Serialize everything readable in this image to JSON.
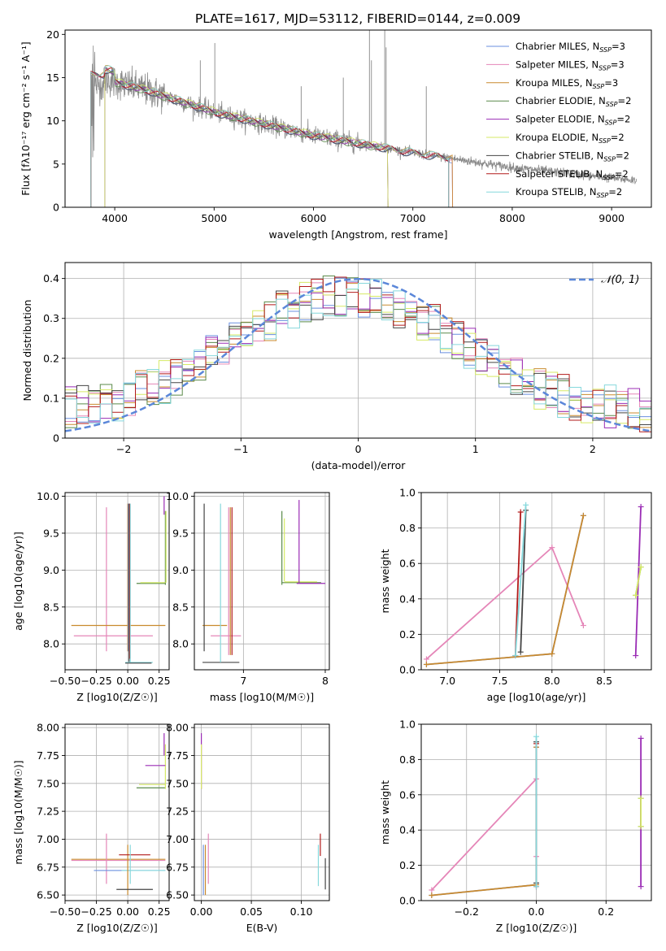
{
  "title": "PLATE=1617, MJD=53112, FIBERID=0144, z=0.009",
  "model_colors": [
    "#6a8fdf",
    "#e586b8",
    "#c98a2e",
    "#5a8a4a",
    "#9a2cb5",
    "#d6ea66",
    "#444444",
    "#b21a1a",
    "#86d8dc"
  ],
  "panel_spectrum": {
    "xlabel": "wavelength [Angstrom, rest frame]",
    "ylabel": "Flux [fλ10⁻¹⁷ erg cm⁻² s⁻¹ A⁻¹]",
    "xlim": [
      3500,
      9400
    ],
    "ylim": [
      0,
      20.5
    ],
    "xticks": [
      4000,
      5000,
      6000,
      7000,
      8000,
      9000
    ],
    "yticks": [
      0,
      5,
      10,
      15,
      20
    ],
    "legend": [
      "Chabrier MILES, N_SSP=3",
      "Salpeter MILES, N_SSP=3",
      "Kroupa MILES, N_SSP=3",
      "Chabrier ELODIE, N_SSP=2",
      "Salpeter ELODIE, N_SSP=2",
      "Kroupa ELODIE, N_SSP=2",
      "Chabrier STELIB, N_SSP=2",
      "Salpeter STELIB, N_SSP=2",
      "Kroupa STELIB, N_SSP=2"
    ],
    "legend_placement": "top-right",
    "data_color": "#888888"
  },
  "panel_hist": {
    "xlabel": "(data-model)/error",
    "ylabel": "Normed distribution",
    "xlim": [
      -2.5,
      2.5
    ],
    "ylim": [
      0,
      0.44
    ],
    "xticks": [
      -2,
      -1,
      0,
      1,
      2
    ],
    "yticks": [
      0.0,
      0.1,
      0.2,
      0.3,
      0.4
    ],
    "gauss_label": "𝒩(0, 1)",
    "gauss_color": "#5b87d9",
    "grid": true
  },
  "panel_Z_age": {
    "xlabel": "Z [log10(Z/Z☉)]",
    "ylabel": "age  [log10(age/yr)]",
    "xlim": [
      -0.5,
      0.33
    ],
    "ylim": [
      7.65,
      10.05
    ],
    "xticks": [
      -0.5,
      -0.25,
      0.0,
      0.25
    ],
    "xticklabels": [
      "−0.50",
      "−0.25",
      "0.00",
      "0.25"
    ],
    "yticks": [
      8.0,
      8.5,
      9.0,
      9.5,
      10.0
    ],
    "yticklabels": [
      "8.0",
      "8.5",
      "9.0",
      "9.5",
      "10.0"
    ]
  },
  "panel_mass_age": {
    "xlabel": "mass [log10(M/M☉)]",
    "xlim": [
      6.4,
      8.05
    ],
    "ylim": [
      7.65,
      10.05
    ],
    "xticks": [
      7,
      8
    ],
    "yticks": [
      8.0,
      8.5,
      9.0,
      9.5,
      10.0
    ],
    "yticklabels": [
      "8.0",
      "8.5",
      "9.0",
      "9.5",
      "10.0"
    ]
  },
  "panel_Z_mass": {
    "xlabel": "Z [log10(Z/Z☉)]",
    "ylabel": "mass [log10(M/M☉)]",
    "xlim": [
      -0.5,
      0.33
    ],
    "ylim": [
      6.45,
      8.03
    ],
    "xticks": [
      -0.5,
      -0.25,
      0.0,
      0.25
    ],
    "xticklabels": [
      "−0.50",
      "−0.25",
      "0.00",
      "0.25"
    ],
    "yticks": [
      6.5,
      6.75,
      7.0,
      7.25,
      7.5,
      7.75,
      8.0
    ],
    "yticklabels": [
      "6.50",
      "6.75",
      "7.00",
      "7.25",
      "7.50",
      "7.75",
      "8.00"
    ]
  },
  "panel_ebv_mass": {
    "xlabel": "E(B-V)",
    "xlim": [
      -0.007,
      0.128
    ],
    "ylim": [
      6.45,
      8.03
    ],
    "xticks": [
      0.0,
      0.05,
      0.1
    ],
    "xticklabels": [
      "0.00",
      "0.05",
      "0.10"
    ],
    "yticks": [
      6.5,
      6.75,
      7.0,
      7.25,
      7.5,
      7.75,
      8.0
    ],
    "yticklabels": [
      "6.50",
      "6.75",
      "7.00",
      "7.25",
      "7.50",
      "7.75",
      "8.00"
    ]
  },
  "panel_age_weight": {
    "xlabel": "age  [log10(age/yr)]",
    "ylabel": "mass weight",
    "xlim": [
      6.75,
      8.95
    ],
    "ylim": [
      0,
      1
    ],
    "xticks": [
      7.0,
      7.5,
      8.0,
      8.5
    ],
    "xticklabels": [
      "7.0",
      "7.5",
      "8.0",
      "8.5"
    ],
    "yticks": [
      0,
      0.2,
      0.4,
      0.6,
      0.8,
      1.0
    ],
    "yticklabels": [
      "0.0",
      "0.2",
      "0.4",
      "0.6",
      "0.8",
      "1.0"
    ]
  },
  "panel_Z_weight": {
    "xlabel": "Z [log10(Z/Z☉)]",
    "ylabel": "mass weight",
    "xlim": [
      -0.33,
      0.33
    ],
    "ylim": [
      0,
      1
    ],
    "xticks": [
      -0.2,
      0.0,
      0.2
    ],
    "xticklabels": [
      "−0.2",
      "0.0",
      "0.2"
    ],
    "yticks": [
      0,
      0.2,
      0.4,
      0.6,
      0.8,
      1.0
    ],
    "yticklabels": [
      "0.0",
      "0.2",
      "0.4",
      "0.6",
      "0.8",
      "1.0"
    ]
  },
  "chart_data": {
    "type": "line",
    "ssp_models": [
      {
        "name": "Chabrier MILES",
        "ages": [
          6.8,
          8.0,
          8.3
        ],
        "Z": [
          -0.3,
          0.0,
          0.0
        ],
        "weights": [
          0.03,
          0.09,
          0.87
        ],
        "mass": [
          6.72,
          6.72,
          6.72
        ],
        "ebv": [
          0.003,
          0.003,
          0.003
        ]
      },
      {
        "name": "Salpeter MILES",
        "ages": [
          6.8,
          8.0,
          8.3
        ],
        "Z": [
          -0.3,
          0.0,
          0.0
        ],
        "weights": [
          0.06,
          0.69,
          0.25
        ],
        "mass": [
          6.82,
          6.82,
          6.82
        ],
        "ebv": [
          0.007,
          0.007,
          0.007
        ]
      },
      {
        "name": "Kroupa MILES",
        "ages": [
          6.8,
          8.0,
          8.3
        ],
        "Z": [
          -0.3,
          0.0,
          0.0
        ],
        "weights": [
          0.03,
          0.09,
          0.87
        ],
        "mass": [
          6.81,
          6.81,
          6.81
        ],
        "ebv": [
          0.004,
          0.004,
          0.004
        ]
      },
      {
        "name": "Chabrier ELODIE",
        "ages": [
          8.8,
          8.85
        ],
        "Z": [
          0.3,
          0.3
        ],
        "weights": [
          0.42,
          0.58
        ],
        "mass": [
          7.48,
          7.48
        ],
        "ebv": [
          0.0,
          0.0
        ]
      },
      {
        "name": "Salpeter ELODIE",
        "ages": [
          8.8,
          8.85
        ],
        "Z": [
          0.3,
          0.3
        ],
        "weights": [
          0.08,
          0.92
        ],
        "mass": [
          7.66,
          7.66
        ],
        "ebv": [
          0.0,
          0.0
        ]
      },
      {
        "name": "Kroupa ELODIE",
        "ages": [
          8.8,
          8.85
        ],
        "Z": [
          0.3,
          0.3
        ],
        "weights": [
          0.42,
          0.58
        ],
        "mass": [
          7.49,
          7.49
        ],
        "ebv": [
          0.0,
          0.0
        ]
      },
      {
        "name": "Chabrier STELIB",
        "ages": [
          7.7,
          7.75
        ],
        "Z": [
          0.0,
          0.0
        ],
        "weights": [
          0.1,
          0.9
        ],
        "mass": [
          6.55,
          6.55
        ],
        "ebv": [
          0.122,
          0.122
        ]
      },
      {
        "name": "Salpeter STELIB",
        "ages": [
          7.65,
          7.7
        ],
        "Z": [
          0.0,
          0.0
        ],
        "weights": [
          0.08,
          0.89
        ],
        "mass": [
          6.86,
          6.86
        ],
        "ebv": [
          0.118,
          0.118
        ]
      },
      {
        "name": "Kroupa STELIB",
        "ages": [
          7.65,
          7.75
        ],
        "Z": [
          0.0,
          0.0
        ],
        "weights": [
          0.08,
          0.93
        ],
        "mass": [
          6.72,
          6.72
        ],
        "ebv": [
          0.117,
          0.117
        ]
      }
    ]
  }
}
